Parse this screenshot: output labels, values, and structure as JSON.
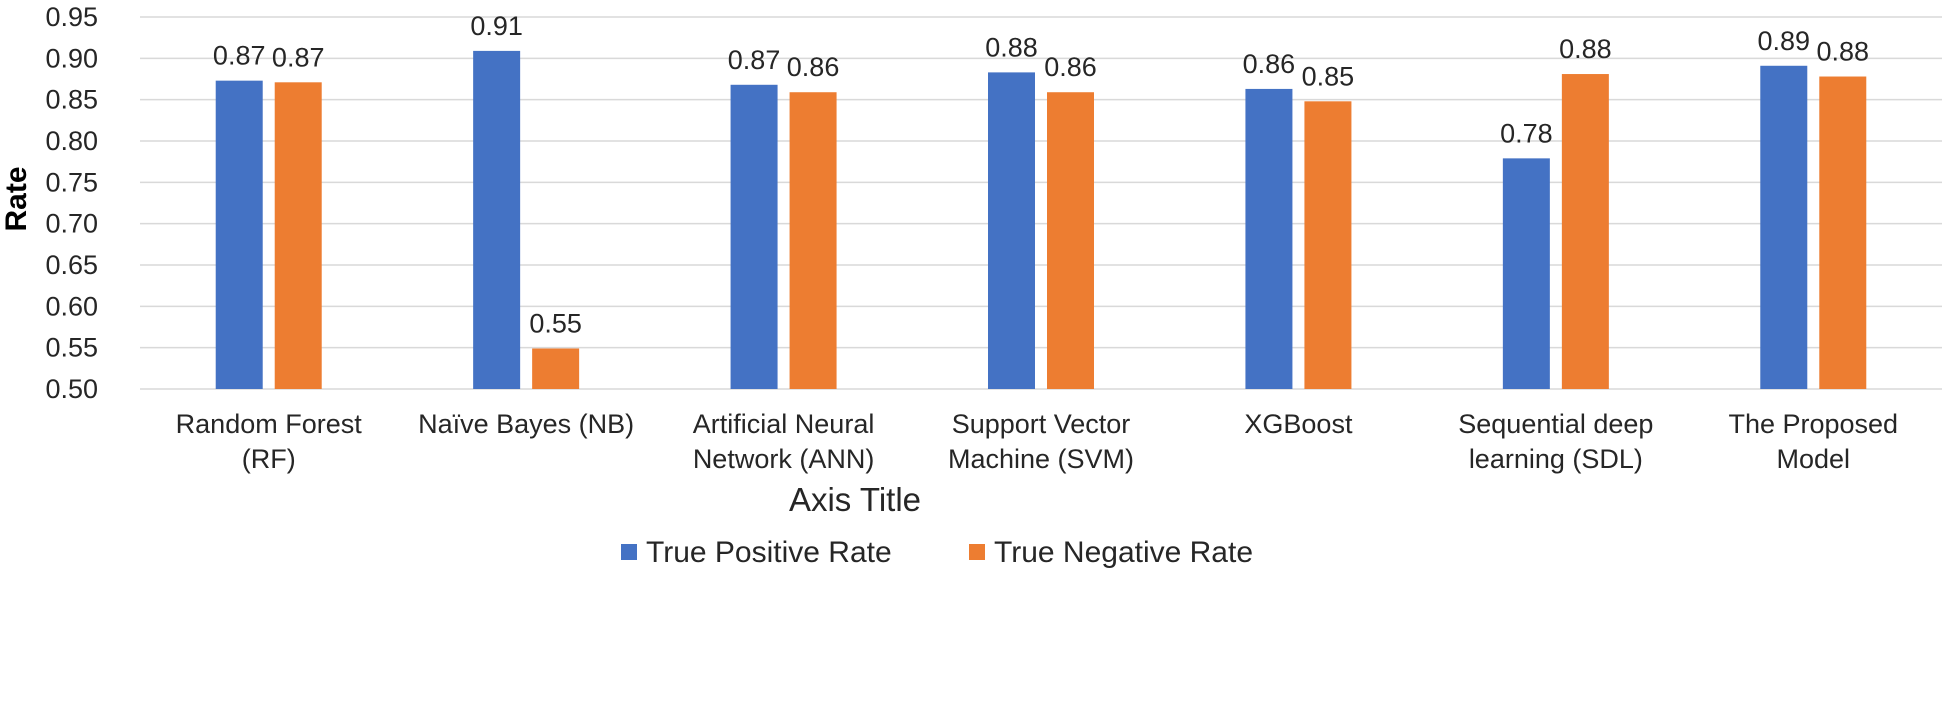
{
  "chart_data": {
    "type": "bar",
    "title": "",
    "xlabel": "Axis Title",
    "ylabel": "Rate",
    "ylim": [
      0.5,
      0.95
    ],
    "y_ticks": [
      "0.50",
      "0.55",
      "0.60",
      "0.65",
      "0.70",
      "0.75",
      "0.80",
      "0.85",
      "0.90",
      "0.95"
    ],
    "grid": true,
    "legend_position": "bottom",
    "categories": [
      [
        "Random Forest",
        "(RF)"
      ],
      [
        "Naïve Bayes (NB)"
      ],
      [
        "Artificial Neural",
        "Network (ANN)"
      ],
      [
        "Support Vector",
        "Machine (SVM)"
      ],
      [
        "XGBoost"
      ],
      [
        "Sequential deep",
        "learning (SDL)"
      ],
      [
        "The Proposed",
        "Model"
      ]
    ],
    "series": [
      {
        "name": "True Positive Rate",
        "color": "#4472c4",
        "values": [
          0.873,
          0.909,
          0.868,
          0.883,
          0.863,
          0.779,
          0.891
        ],
        "labels": [
          "0.87",
          "0.91",
          "0.87",
          "0.88",
          "0.86",
          "0.78",
          "0.89"
        ]
      },
      {
        "name": "True Negative Rate",
        "color": "#ed7d31",
        "values": [
          0.871,
          0.549,
          0.859,
          0.859,
          0.848,
          0.881,
          0.878
        ],
        "labels": [
          "0.87",
          "0.55",
          "0.86",
          "0.86",
          "0.85",
          "0.88",
          "0.88"
        ]
      }
    ]
  }
}
